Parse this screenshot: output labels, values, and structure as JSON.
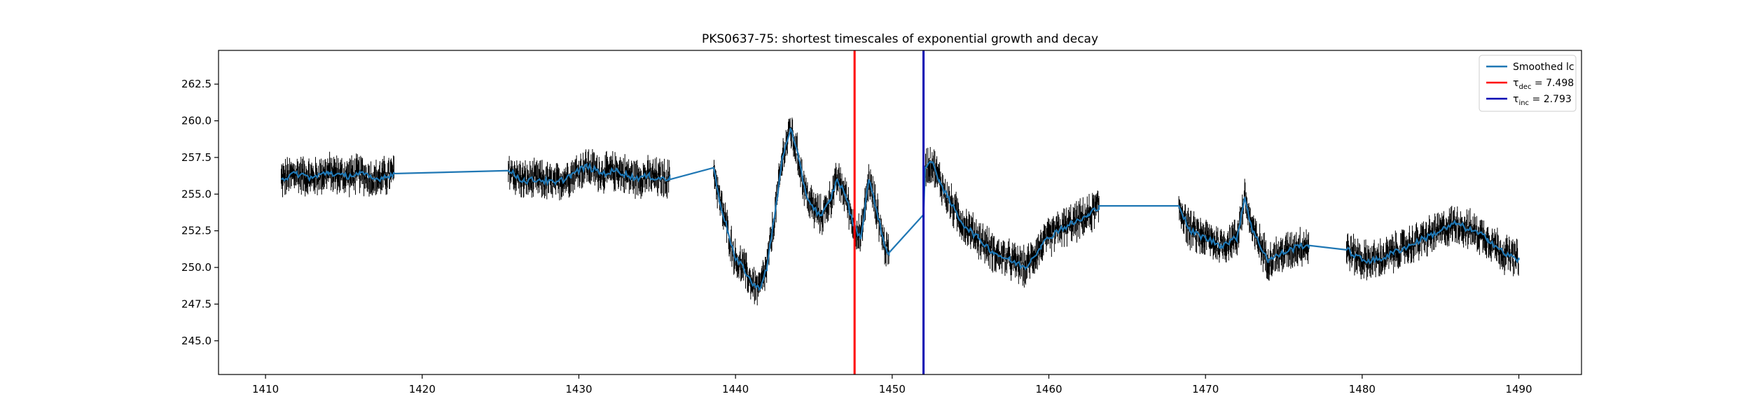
{
  "chart_data": {
    "type": "line",
    "title": "PKS0637-75: shortest timescales of exponential growth and decay",
    "xlabel": "",
    "ylabel": "",
    "xlim": [
      1407,
      1494
    ],
    "ylim": [
      242.7,
      264.8
    ],
    "xticks": [
      1410,
      1420,
      1430,
      1440,
      1450,
      1460,
      1470,
      1480,
      1490
    ],
    "yticks": [
      245.0,
      247.5,
      250.0,
      252.5,
      255.0,
      257.5,
      260.0,
      262.5
    ],
    "ytick_labels": [
      "245.0",
      "247.5",
      "250.0",
      "252.5",
      "255.0",
      "257.5",
      "260.0",
      "262.5"
    ],
    "grid": false,
    "legend_position": "top-right",
    "legend": [
      {
        "name": "Smoothed lc",
        "color": "#1f77b4",
        "label_html": "Smoothed lc"
      },
      {
        "name": "τdec = 7.498",
        "color": "#ff0000",
        "symbol": "τ",
        "sub": "dec",
        "value_text": " = 7.498"
      },
      {
        "name": "τinc = 2.793",
        "color": "#0000b3",
        "symbol": "τ",
        "sub": "inc",
        "value_text": " = 2.793"
      }
    ],
    "vlines": [
      {
        "x": 1447.6,
        "color": "#ff0000",
        "label": "τdec = 7.498"
      },
      {
        "x": 1452.0,
        "color": "#0000b3",
        "label": "τinc = 2.793"
      }
    ],
    "errorbar_series": {
      "name": "data",
      "color": "#000000",
      "note": "dense flux measurements with vertical error bars"
    },
    "smoothed_lc": {
      "name": "Smoothed lc",
      "color": "#1f77b4",
      "points": [
        [
          1411.0,
          256.0
        ],
        [
          1412.0,
          256.4
        ],
        [
          1413.0,
          256.1
        ],
        [
          1414.0,
          256.5
        ],
        [
          1415.0,
          256.2
        ],
        [
          1416.0,
          256.4
        ],
        [
          1417.0,
          256.0
        ],
        [
          1418.2,
          256.4
        ],
        [
          1425.5,
          256.6
        ],
        [
          1426.5,
          255.9
        ],
        [
          1427.5,
          256.0
        ],
        [
          1428.5,
          255.7
        ],
        [
          1429.5,
          256.3
        ],
        [
          1430.5,
          256.9
        ],
        [
          1431.5,
          256.4
        ],
        [
          1432.5,
          256.6
        ],
        [
          1433.5,
          256.1
        ],
        [
          1434.5,
          256.2
        ],
        [
          1435.8,
          256.0
        ],
        [
          1438.6,
          256.8
        ],
        [
          1439.0,
          254.5
        ],
        [
          1439.5,
          252.5
        ],
        [
          1440.0,
          250.5
        ],
        [
          1440.5,
          250.0
        ],
        [
          1441.0,
          249.0
        ],
        [
          1441.5,
          248.5
        ],
        [
          1442.0,
          250.0
        ],
        [
          1442.5,
          253.5
        ],
        [
          1443.0,
          257.5
        ],
        [
          1443.5,
          259.5
        ],
        [
          1444.0,
          257.5
        ],
        [
          1444.5,
          255.0
        ],
        [
          1445.0,
          254.0
        ],
        [
          1445.5,
          253.5
        ],
        [
          1446.0,
          254.5
        ],
        [
          1446.5,
          256.0
        ],
        [
          1447.0,
          255.0
        ],
        [
          1447.5,
          253.0
        ],
        [
          1448.0,
          252.0
        ],
        [
          1448.5,
          256.0
        ],
        [
          1449.0,
          254.0
        ],
        [
          1449.5,
          251.5
        ],
        [
          1449.8,
          251.0
        ],
        [
          1452.0,
          253.6
        ],
        [
          1452.1,
          256.8
        ],
        [
          1452.5,
          257.2
        ],
        [
          1453.0,
          256.0
        ],
        [
          1453.5,
          254.8
        ],
        [
          1454.5,
          253.0
        ],
        [
          1455.5,
          252.0
        ],
        [
          1456.5,
          251.0
        ],
        [
          1457.5,
          250.5
        ],
        [
          1458.5,
          250.0
        ],
        [
          1459.5,
          251.5
        ],
        [
          1460.5,
          252.5
        ],
        [
          1461.5,
          253.0
        ],
        [
          1462.5,
          253.5
        ],
        [
          1463.2,
          254.2
        ],
        [
          1468.3,
          254.2
        ],
        [
          1469.0,
          252.5
        ],
        [
          1470.0,
          252.0
        ],
        [
          1471.0,
          251.5
        ],
        [
          1472.0,
          252.0
        ],
        [
          1472.5,
          254.8
        ],
        [
          1473.0,
          252.5
        ],
        [
          1474.0,
          250.5
        ],
        [
          1475.0,
          251.0
        ],
        [
          1476.0,
          251.5
        ],
        [
          1476.6,
          251.5
        ],
        [
          1479.0,
          251.2
        ],
        [
          1480.0,
          250.5
        ],
        [
          1481.0,
          250.5
        ],
        [
          1482.0,
          251.0
        ],
        [
          1483.0,
          251.5
        ],
        [
          1484.0,
          252.0
        ],
        [
          1485.0,
          252.5
        ],
        [
          1486.0,
          253.0
        ],
        [
          1487.0,
          252.5
        ],
        [
          1488.0,
          252.0
        ],
        [
          1489.0,
          251.0
        ],
        [
          1490.0,
          250.5
        ]
      ]
    }
  }
}
